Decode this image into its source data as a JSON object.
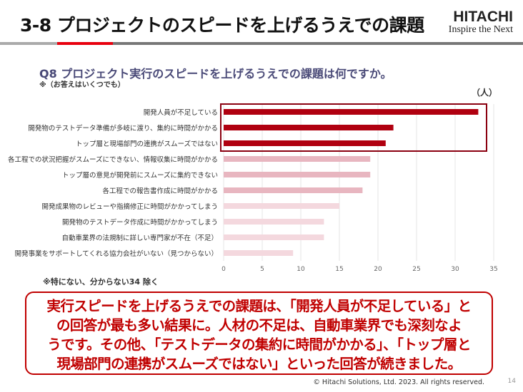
{
  "header": {
    "title": "3-8  プロジェクトのスピードを上げるうえでの課題",
    "logo_brand": "HITACHI",
    "logo_tagline": "Inspire the Next"
  },
  "question": {
    "text": "Q8  プロジェクト実行のスピードを上げるうえでの課題は何ですか。",
    "note": "※（お答えはいくつでも）",
    "unit": "（人）"
  },
  "chart_data": {
    "type": "bar",
    "orientation": "horizontal",
    "categories": [
      "開発人員が不足している",
      "開発物のテストデータ準備が多岐に渡り、集約に時間がかかる",
      "トップ層と現場部門の連携がスムーズではない",
      "各工程での状況把握がスムーズにできない、情報収集に時間がかかる",
      "トップ層の意見が開発前にスムーズに集約できない",
      "各工程での報告書作成に時間がかかる",
      "開発成果物のレビューや指摘修正に時間がかかってしまう",
      "開発物のテストデータ作成に時間がかかってしまう",
      "自動車業界の法規制に詳しい専門家が不在（不足）",
      "開発事業をサポートしてくれる協力会社がいない（見つからない）"
    ],
    "values": [
      33,
      22,
      21,
      19,
      19,
      18,
      15,
      13,
      13,
      9
    ],
    "xlim": [
      0,
      35
    ],
    "ticks": [
      "0",
      "5",
      "10",
      "15",
      "20",
      "25",
      "30",
      "35"
    ],
    "grid": true,
    "highlighted": [
      0,
      1,
      2
    ],
    "colors": {
      "top": "#b00010",
      "mid": "#e8b6c0",
      "low": "#f4d8de",
      "highlight_box": "#8b0010"
    }
  },
  "footnote": "※特にない、分からない34  除く",
  "summary": {
    "lines": [
      "実行スピードを上げるうえでの課題は、「開発人員が不足している」と",
      "の回答が最も多い結果に。人材の不足は、自動車業界でも深刻なよ",
      "うです。その他、「テストデータの集約に時間がかかる」、「トップ層と",
      "現場部門の連携がスムーズではない」といった回答が続きました。"
    ]
  },
  "footer": {
    "copyright": "© Hitachi Solutions, Ltd. 2023. All rights reserved.",
    "page": "14"
  }
}
